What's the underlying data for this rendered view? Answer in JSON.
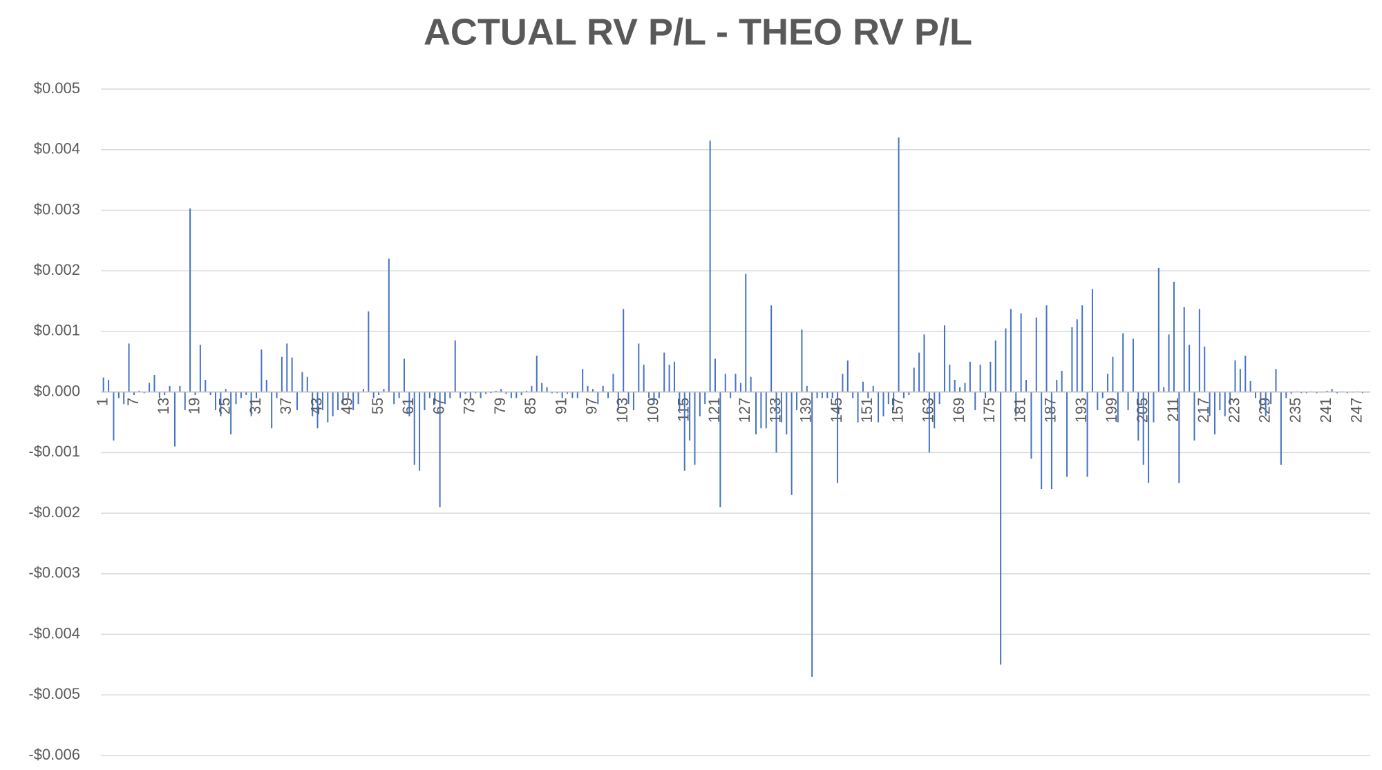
{
  "chart_data": {
    "type": "bar",
    "title": "ACTUAL RV P/L - THEO RV P/L",
    "categories": [
      "1",
      null,
      null,
      null,
      null,
      null,
      "7",
      null,
      null,
      null,
      null,
      null,
      "13",
      null,
      null,
      null,
      null,
      null,
      "19",
      null,
      null,
      null,
      null,
      null,
      "25",
      null,
      null,
      null,
      null,
      null,
      "31",
      null,
      null,
      null,
      null,
      null,
      "37",
      null,
      null,
      null,
      null,
      null,
      "43",
      null,
      null,
      null,
      null,
      null,
      "49",
      null,
      null,
      null,
      null,
      null,
      "55",
      null,
      null,
      null,
      null,
      null,
      "61",
      null,
      null,
      null,
      null,
      null,
      "67",
      null,
      null,
      null,
      null,
      null,
      "73",
      null,
      null,
      null,
      null,
      null,
      "79",
      null,
      null,
      null,
      null,
      null,
      "85",
      null,
      null,
      null,
      null,
      null,
      "91",
      null,
      null,
      null,
      null,
      null,
      "97",
      null,
      null,
      null,
      null,
      null,
      "103",
      null,
      null,
      null,
      null,
      null,
      "109",
      null,
      null,
      null,
      null,
      null,
      "115",
      null,
      null,
      null,
      null,
      null,
      "121",
      null,
      null,
      null,
      null,
      null,
      "127",
      null,
      null,
      null,
      null,
      null,
      "133",
      null,
      null,
      null,
      null,
      null,
      "139",
      null,
      null,
      null,
      null,
      null,
      "145",
      null,
      null,
      null,
      null,
      null,
      "151",
      null,
      null,
      null,
      null,
      null,
      "157",
      null,
      null,
      null,
      null,
      null,
      "163",
      null,
      null,
      null,
      null,
      null,
      "169",
      null,
      null,
      null,
      null,
      null,
      "175",
      null,
      null,
      null,
      null,
      null,
      "181",
      null,
      null,
      null,
      null,
      null,
      "187",
      null,
      null,
      null,
      null,
      null,
      "193",
      null,
      null,
      null,
      null,
      null,
      "199",
      null,
      null,
      null,
      null,
      null,
      "205",
      null,
      null,
      null,
      null,
      null,
      "211",
      null,
      null,
      null,
      null,
      null,
      "217",
      null,
      null,
      null,
      null,
      null,
      "223",
      null,
      null,
      null,
      null,
      null,
      "229",
      null,
      null,
      null,
      null,
      null,
      "235",
      null,
      null,
      null,
      null,
      null,
      "241",
      null,
      null,
      null,
      null,
      null,
      "247",
      null,
      null
    ],
    "values": [
      0.00024,
      0.0002,
      -0.0008,
      -0.0001,
      -0.0002,
      0.0008,
      -5e-05,
      2e-05,
      -2e-05,
      0.00015,
      0.00028,
      -0.0001,
      -5e-05,
      0.0001,
      -0.0009,
      0.0001,
      -0.0003,
      0.00303,
      -5e-05,
      0.00078,
      0.0002,
      -5e-05,
      -0.0003,
      -0.0004,
      5e-05,
      -0.0007,
      -0.0002,
      -0.0001,
      -5e-05,
      -0.0004,
      -0.0001,
      0.0007,
      0.0002,
      -0.0006,
      -0.0001,
      0.00058,
      0.0008,
      0.00057,
      -0.0003,
      0.00033,
      0.00025,
      -0.0004,
      -0.0006,
      -0.0003,
      -0.0005,
      -0.0004,
      -0.0003,
      -0.0002,
      -0.0001,
      -0.0003,
      -0.0002,
      5e-05,
      0.00133,
      -0.0001,
      -5e-05,
      5e-05,
      0.0022,
      -0.0002,
      -0.0001,
      0.00055,
      -0.0004,
      -0.0012,
      -0.0013,
      -0.0003,
      -0.0001,
      -0.0002,
      -0.0019,
      -0.0002,
      -0.0001,
      0.00085,
      -0.0001,
      -3e-05,
      -0.0001,
      -2e-05,
      -0.0001,
      -3e-05,
      -2e-05,
      2e-05,
      5e-05,
      -3e-05,
      -0.0001,
      -0.0001,
      -5e-05,
      2e-05,
      0.0001,
      0.0006,
      0.00015,
      8e-05,
      -2e-05,
      -2e-05,
      -0.0001,
      -3e-05,
      -0.0001,
      -0.0001,
      0.00038,
      0.0001,
      5e-05,
      -0.0002,
      0.0001,
      -0.0001,
      0.0003,
      -0.0003,
      0.00137,
      -0.0002,
      -0.0003,
      0.0008,
      0.00045,
      -0.0001,
      -0.0002,
      -0.0001,
      0.00065,
      0.00045,
      0.0005,
      -0.0003,
      -0.0013,
      -0.0008,
      -0.0012,
      -0.0004,
      -0.0002,
      0.00415,
      0.00055,
      -0.0019,
      0.0003,
      -0.0001,
      0.0003,
      0.00015,
      0.00195,
      0.00025,
      -0.0007,
      -0.0006,
      -0.0006,
      0.00143,
      -0.001,
      -0.0005,
      -0.0007,
      -0.0017,
      -0.0003,
      0.00103,
      0.0001,
      -0.0047,
      -0.0001,
      -0.0001,
      -0.0001,
      -0.0001,
      -0.0015,
      0.0003,
      0.00052,
      -0.0001,
      -0.0005,
      0.00017,
      -0.0001,
      0.0001,
      -0.0005,
      -0.0004,
      -0.0002,
      -0.0003,
      0.0042,
      -0.0001,
      -5e-05,
      0.0004,
      0.00065,
      0.00095,
      -0.001,
      -0.0006,
      -0.0002,
      0.0011,
      0.00045,
      0.0002,
      8e-05,
      0.00015,
      0.0005,
      -0.0003,
      0.00045,
      -0.0001,
      0.0005,
      0.00085,
      -0.0045,
      0.00105,
      0.00137,
      -0.0004,
      0.0013,
      0.0002,
      -0.0011,
      0.00123,
      -0.0016,
      0.00143,
      -0.0016,
      0.0002,
      0.00035,
      -0.0014,
      0.00107,
      0.0012,
      0.00143,
      -0.0014,
      0.0017,
      -0.0003,
      -0.0001,
      0.0003,
      0.00058,
      -0.0005,
      0.00097,
      -0.0003,
      0.00088,
      -0.0008,
      -0.0012,
      -0.0015,
      -0.0005,
      0.00205,
      8e-05,
      0.00095,
      0.00182,
      -0.0015,
      0.0014,
      0.00078,
      -0.0008,
      0.00137,
      0.00075,
      -0.0004,
      -0.0007,
      -0.0003,
      -0.0004,
      -0.0002,
      0.00052,
      0.00038,
      0.0006,
      0.00018,
      -0.0001,
      -0.0003,
      -0.0004,
      -0.0002,
      0.00038,
      -0.0012,
      -0.0001,
      -3e-05,
      1e-05,
      -2e-05,
      -2e-05,
      1e-05,
      -2e-05,
      -1e-05,
      2e-05,
      5e-05,
      -2e-05,
      1e-05,
      -2e-05,
      -1e-05,
      1e-05,
      -2e-05,
      -1e-05
    ],
    "color": "#4472c4",
    "ylim": [
      -0.006,
      0.005
    ],
    "yticks": [
      {
        "value": -0.006,
        "label": "-$0.006"
      },
      {
        "value": -0.005,
        "label": "-$0.005"
      },
      {
        "value": -0.004,
        "label": "-$0.004"
      },
      {
        "value": -0.003,
        "label": "-$0.003"
      },
      {
        "value": -0.002,
        "label": "-$0.002"
      },
      {
        "value": -0.001,
        "label": "-$0.001"
      },
      {
        "value": 0,
        "label": "$0.000"
      },
      {
        "value": 0.001,
        "label": "$0.001"
      },
      {
        "value": 0.002,
        "label": "$0.002"
      },
      {
        "value": 0.003,
        "label": "$0.003"
      },
      {
        "value": 0.004,
        "label": "$0.004"
      },
      {
        "value": 0.005,
        "label": "$0.005"
      }
    ],
    "grid": true
  }
}
